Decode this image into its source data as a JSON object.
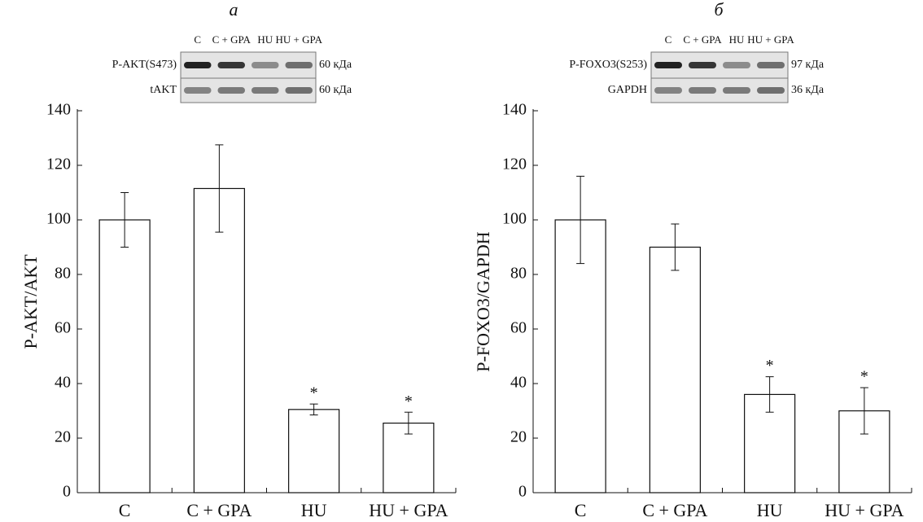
{
  "chart_data": [
    {
      "type": "bar",
      "panel": "а",
      "ylabel": "P-AKT/AKT",
      "categories": [
        "C",
        "C + GPA",
        "HU",
        "HU + GPA"
      ],
      "values": [
        100,
        111.5,
        30.5,
        25.5
      ],
      "errors": [
        10,
        16,
        2,
        4
      ],
      "markers": [
        null,
        null,
        "*",
        "*"
      ],
      "ylim": [
        0,
        140
      ],
      "yticks": [
        0,
        20,
        40,
        60,
        80,
        100,
        120,
        140
      ],
      "color": "#ffffff",
      "blot": {
        "lanes": [
          "C",
          "C + GPA",
          "HU",
          "HU + GPA"
        ],
        "rows": [
          {
            "label": "P-AKT(S473)",
            "size": "60 кДа"
          },
          {
            "label": "tAKT",
            "size": "60 кДа"
          }
        ]
      }
    },
    {
      "type": "bar",
      "panel": "б",
      "ylabel": "P-FOXO3/GAPDH",
      "categories": [
        "C",
        "C + GPA",
        "HU",
        "HU + GPA"
      ],
      "values": [
        100,
        90,
        36,
        30
      ],
      "errors": [
        16,
        8.5,
        6.5,
        8.5
      ],
      "markers": [
        null,
        null,
        "*",
        "*"
      ],
      "ylim": [
        0,
        140
      ],
      "yticks": [
        0,
        20,
        40,
        60,
        80,
        100,
        120,
        140
      ],
      "color": "#ffffff",
      "blot": {
        "lanes": [
          "C",
          "C + GPA",
          "HU",
          "HU + GPA"
        ],
        "rows": [
          {
            "label": "P-FOXO3(S253)",
            "size": "97 кДа"
          },
          {
            "label": "GAPDH",
            "size": "36 кДа"
          }
        ]
      }
    }
  ]
}
